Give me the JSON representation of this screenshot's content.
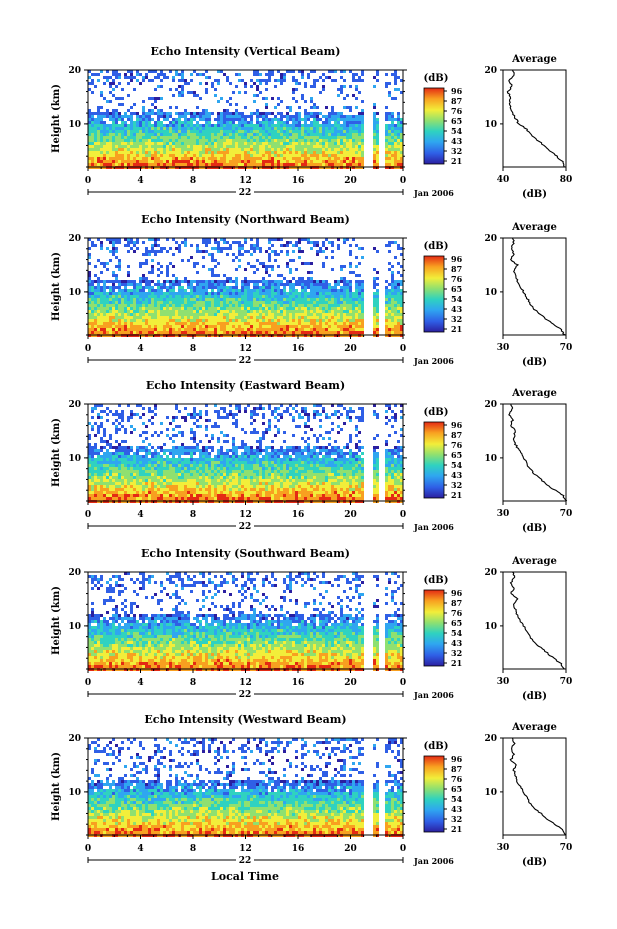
{
  "figure": {
    "x_axis_title": "Local Time",
    "date_label": "Jan 2006",
    "day_label": "22"
  },
  "chart_data": [
    {
      "type": "heatmap",
      "title": "Echo Intensity (Vertical Beam)",
      "ylabel": "Height (km)",
      "xlim": [
        0,
        24
      ],
      "ylim": [
        2,
        20
      ],
      "x_ticks": [
        "0",
        "4",
        "8",
        "12",
        "16",
        "20",
        "0"
      ],
      "y_ticks": [
        "10",
        "20"
      ],
      "colorbar": {
        "unit": "(dB)",
        "ticks": [
          "96",
          "87",
          "76",
          "65",
          "54",
          "43",
          "32",
          "21"
        ]
      },
      "data_gap_hours": [
        [
          21.0,
          21.5
        ],
        [
          22.0,
          22.5
        ]
      ],
      "profile": {
        "title": "Average",
        "xlabel": "(dB)",
        "xlim": [
          40,
          80
        ],
        "x_ticks": [
          "40",
          "80"
        ],
        "y_ticks": [
          "10",
          "20"
        ],
        "points": [
          [
            79,
            2
          ],
          [
            78,
            3
          ],
          [
            74,
            4
          ],
          [
            70,
            5
          ],
          [
            66,
            6
          ],
          [
            62,
            7
          ],
          [
            58,
            8
          ],
          [
            55,
            9
          ],
          [
            50,
            10
          ],
          [
            48,
            11
          ],
          [
            46,
            12
          ],
          [
            45,
            13
          ],
          [
            44,
            14
          ],
          [
            45,
            15
          ],
          [
            43,
            16
          ],
          [
            46,
            17
          ],
          [
            44,
            18
          ],
          [
            47,
            19
          ],
          [
            46,
            20
          ]
        ]
      }
    },
    {
      "type": "heatmap",
      "title": "Echo Intensity (Northward Beam)",
      "ylabel": "Height (km)",
      "xlim": [
        0,
        24
      ],
      "ylim": [
        2,
        20
      ],
      "x_ticks": [
        "0",
        "4",
        "8",
        "12",
        "16",
        "20",
        "0"
      ],
      "y_ticks": [
        "10",
        "20"
      ],
      "colorbar": {
        "unit": "(dB)",
        "ticks": [
          "96",
          "87",
          "76",
          "65",
          "54",
          "43",
          "32",
          "21"
        ]
      },
      "data_gap_hours": [
        [
          21.0,
          21.5
        ],
        [
          22.0,
          22.5
        ]
      ],
      "profile": {
        "title": "Average",
        "xlabel": "(dB)",
        "xlim": [
          30,
          70
        ],
        "x_ticks": [
          "30",
          "70"
        ],
        "y_ticks": [
          "10",
          "20"
        ],
        "points": [
          [
            69,
            2
          ],
          [
            67,
            3
          ],
          [
            62,
            4
          ],
          [
            57,
            5
          ],
          [
            53,
            6
          ],
          [
            49,
            7
          ],
          [
            47,
            8
          ],
          [
            45,
            9
          ],
          [
            43,
            10
          ],
          [
            41,
            11
          ],
          [
            39,
            12
          ],
          [
            38,
            13
          ],
          [
            37,
            14
          ],
          [
            39,
            15
          ],
          [
            35,
            16
          ],
          [
            37,
            17
          ],
          [
            35,
            18
          ],
          [
            37,
            19
          ],
          [
            36,
            20
          ]
        ]
      }
    },
    {
      "type": "heatmap",
      "title": "Echo Intensity (Eastward Beam)",
      "ylabel": "Height (km)",
      "xlim": [
        0,
        24
      ],
      "ylim": [
        2,
        20
      ],
      "x_ticks": [
        "0",
        "4",
        "8",
        "12",
        "16",
        "20",
        "0"
      ],
      "y_ticks": [
        "10",
        "20"
      ],
      "colorbar": {
        "unit": "(dB)",
        "ticks": [
          "96",
          "87",
          "76",
          "65",
          "54",
          "43",
          "32",
          "21"
        ]
      },
      "data_gap_hours": [
        [
          21.0,
          21.5
        ],
        [
          22.0,
          22.5
        ]
      ],
      "profile": {
        "title": "Average",
        "xlabel": "(dB)",
        "xlim": [
          30,
          70
        ],
        "x_ticks": [
          "30",
          "70"
        ],
        "y_ticks": [
          "10",
          "20"
        ],
        "points": [
          [
            70,
            2
          ],
          [
            68,
            3
          ],
          [
            63,
            4
          ],
          [
            58,
            5
          ],
          [
            54,
            6
          ],
          [
            50,
            7
          ],
          [
            47,
            8
          ],
          [
            45,
            9
          ],
          [
            43,
            10
          ],
          [
            41,
            11
          ],
          [
            39,
            12
          ],
          [
            37,
            13
          ],
          [
            37,
            14
          ],
          [
            38,
            15
          ],
          [
            35,
            16
          ],
          [
            36,
            17
          ],
          [
            34,
            18
          ],
          [
            36,
            19
          ],
          [
            35,
            20
          ]
        ]
      }
    },
    {
      "type": "heatmap",
      "title": "Echo Intensity (Southward Beam)",
      "ylabel": "Height (km)",
      "xlim": [
        0,
        24
      ],
      "ylim": [
        2,
        20
      ],
      "x_ticks": [
        "0",
        "4",
        "8",
        "12",
        "16",
        "20",
        "0"
      ],
      "y_ticks": [
        "10",
        "20"
      ],
      "colorbar": {
        "unit": "(dB)",
        "ticks": [
          "96",
          "87",
          "76",
          "65",
          "54",
          "43",
          "32",
          "21"
        ]
      },
      "data_gap_hours": [
        [
          21.0,
          21.5
        ],
        [
          22.0,
          22.5
        ]
      ],
      "profile": {
        "title": "Average",
        "xlabel": "(dB)",
        "xlim": [
          30,
          70
        ],
        "x_ticks": [
          "30",
          "70"
        ],
        "y_ticks": [
          "10",
          "20"
        ],
        "points": [
          [
            69,
            2
          ],
          [
            67,
            3
          ],
          [
            62,
            4
          ],
          [
            58,
            5
          ],
          [
            54,
            6
          ],
          [
            50,
            7
          ],
          [
            47,
            8
          ],
          [
            45,
            9
          ],
          [
            43,
            10
          ],
          [
            41,
            11
          ],
          [
            39,
            12
          ],
          [
            38,
            13
          ],
          [
            37,
            14
          ],
          [
            39,
            15
          ],
          [
            35,
            16
          ],
          [
            37,
            17
          ],
          [
            35,
            18
          ],
          [
            37,
            19
          ],
          [
            36,
            20
          ]
        ]
      }
    },
    {
      "type": "heatmap",
      "title": "Echo Intensity (Westward Beam)",
      "ylabel": "Height (km)",
      "xlim": [
        0,
        24
      ],
      "ylim": [
        2,
        20
      ],
      "x_ticks": [
        "0",
        "4",
        "8",
        "12",
        "16",
        "20",
        "0"
      ],
      "y_ticks": [
        "10",
        "20"
      ],
      "colorbar": {
        "unit": "(dB)",
        "ticks": [
          "96",
          "87",
          "76",
          "65",
          "54",
          "43",
          "32",
          "21"
        ]
      },
      "data_gap_hours": [
        [
          21.0,
          21.5
        ],
        [
          22.0,
          22.5
        ]
      ],
      "profile": {
        "title": "Average",
        "xlabel": "(dB)",
        "xlim": [
          30,
          70
        ],
        "x_ticks": [
          "30",
          "70"
        ],
        "y_ticks": [
          "10",
          "20"
        ],
        "points": [
          [
            70,
            2
          ],
          [
            68,
            3
          ],
          [
            63,
            4
          ],
          [
            58,
            5
          ],
          [
            54,
            6
          ],
          [
            50,
            7
          ],
          [
            47,
            8
          ],
          [
            45,
            9
          ],
          [
            43,
            10
          ],
          [
            41,
            11
          ],
          [
            39,
            12
          ],
          [
            38,
            13
          ],
          [
            37,
            14
          ],
          [
            38,
            15
          ],
          [
            35,
            16
          ],
          [
            37,
            17
          ],
          [
            35,
            18
          ],
          [
            37,
            19
          ],
          [
            36,
            20
          ]
        ]
      }
    }
  ]
}
